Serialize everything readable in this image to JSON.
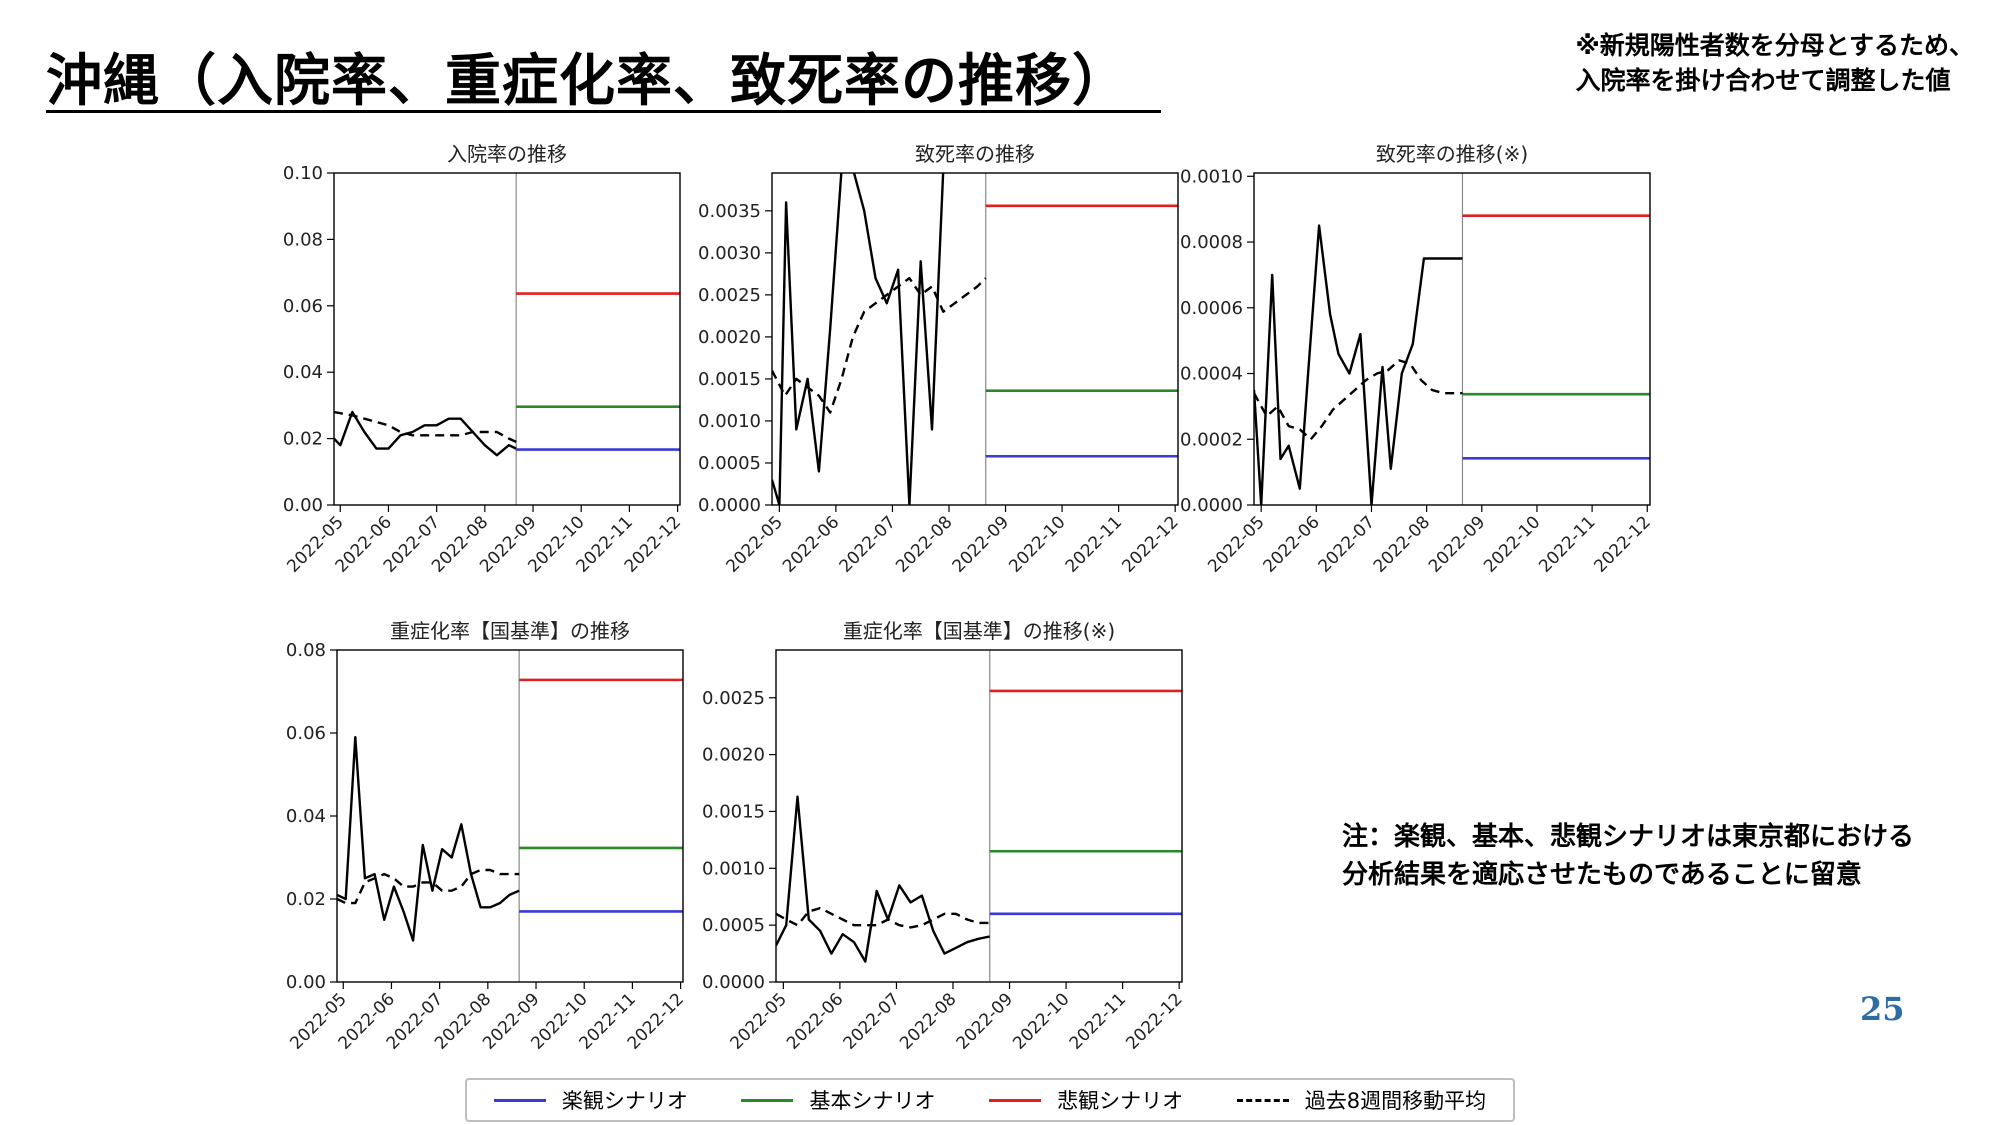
{
  "page": {
    "title": "沖縄（入院率、重症化率、致死率の推移）",
    "note_top": [
      "※新規陽性者数を分母とするため、",
      "入院率を掛け合わせて調整した値"
    ],
    "note_bottom": [
      "注：楽観、基本、悲観シナリオは東京都における",
      "分析結果を適応させたものであることに留意"
    ],
    "page_number": "25"
  },
  "colors": {
    "optimistic": "#3a3ad8",
    "base": "#2a8a2a",
    "pessimistic": "#e02020",
    "actual": "#000000"
  },
  "legend": [
    {
      "label": "楽観シナリオ",
      "style": "solid",
      "color": "#3a3ad8"
    },
    {
      "label": "基本シナリオ",
      "style": "solid",
      "color": "#2a8a2a"
    },
    {
      "label": "悲観シナリオ",
      "style": "solid",
      "color": "#e02020"
    },
    {
      "label": "過去8週間移動平均",
      "style": "dashed",
      "color": "#000000"
    }
  ],
  "chart_data": [
    {
      "type": "line",
      "title": "入院率の推移",
      "xlabel": "",
      "ylabel": "",
      "x_ticks": [
        "2022-05",
        "2022-06",
        "2022-07",
        "2022-08",
        "2022-09",
        "2022-10",
        "2022-11",
        "2022-12"
      ],
      "x_range": [
        4.87,
        12.05
      ],
      "ylim": [
        0,
        0.1
      ],
      "y_ticks": [
        0.0,
        0.02,
        0.04,
        0.06,
        0.08,
        0.1
      ],
      "y_tick_labels": [
        "0.00",
        "0.02",
        "0.04",
        "0.06",
        "0.08",
        "0.10"
      ],
      "y_axis_top_tick": true,
      "split_x": 8.65,
      "scenarios": [
        {
          "name": "楽観シナリオ",
          "value": 0.0167
        },
        {
          "name": "基本シナリオ",
          "value": 0.0296
        },
        {
          "name": "悲観シナリオ",
          "value": 0.0637
        }
      ],
      "series": [
        {
          "name": "actual",
          "style": "solid",
          "x": [
            4.87,
            5.0,
            5.25,
            5.5,
            5.75,
            6.0,
            6.25,
            6.5,
            6.75,
            7.0,
            7.25,
            7.5,
            7.75,
            8.0,
            8.25,
            8.5,
            8.65
          ],
          "y": [
            0.02,
            0.018,
            0.028,
            0.022,
            0.017,
            0.017,
            0.021,
            0.022,
            0.024,
            0.024,
            0.026,
            0.026,
            0.022,
            0.018,
            0.015,
            0.018,
            0.017
          ]
        },
        {
          "name": "過去8週間移動平均",
          "style": "dashed",
          "x": [
            4.87,
            5.25,
            5.5,
            5.75,
            6.0,
            6.25,
            6.5,
            6.75,
            7.0,
            7.25,
            7.5,
            7.75,
            8.0,
            8.25,
            8.5,
            8.65
          ],
          "y": [
            0.028,
            0.027,
            0.026,
            0.025,
            0.024,
            0.022,
            0.021,
            0.021,
            0.021,
            0.021,
            0.021,
            0.022,
            0.022,
            0.022,
            0.02,
            0.019
          ]
        }
      ]
    },
    {
      "type": "line",
      "title": "致死率の推移",
      "xlabel": "",
      "ylabel": "",
      "x_ticks": [
        "2022-05",
        "2022-06",
        "2022-07",
        "2022-08",
        "2022-09",
        "2022-10",
        "2022-11",
        "2022-12"
      ],
      "x_range": [
        4.87,
        12.05
      ],
      "ylim": [
        0,
        0.00395
      ],
      "y_ticks": [
        0.0,
        0.0005,
        0.001,
        0.0015,
        0.002,
        0.0025,
        0.003,
        0.0035
      ],
      "y_tick_labels": [
        "0.0000",
        "0.0005",
        "0.0010",
        "0.0015",
        "0.0020",
        "0.0025",
        "0.0030",
        "0.0035"
      ],
      "y_axis_top_tick": false,
      "split_x": 8.65,
      "scenarios": [
        {
          "name": "楽観シナリオ",
          "value": 0.00058
        },
        {
          "name": "基本シナリオ",
          "value": 0.00136
        },
        {
          "name": "悲観シナリオ",
          "value": 0.00356
        }
      ],
      "series": [
        {
          "name": "actual",
          "style": "solid",
          "x": [
            4.87,
            5.0,
            5.12,
            5.3,
            5.5,
            5.7,
            5.9,
            6.1,
            6.3,
            6.5,
            6.7,
            6.9,
            7.1,
            7.3,
            7.5,
            7.7,
            7.9,
            8.1,
            8.3,
            8.5,
            8.65
          ],
          "y": [
            0.0003,
            0.0,
            0.0036,
            0.0009,
            0.0015,
            0.0004,
            0.0021,
            0.004,
            0.004,
            0.0035,
            0.0027,
            0.0024,
            0.0028,
            0.0,
            0.0029,
            0.0009,
            0.004,
            0.004,
            0.004,
            0.004,
            0.004
          ]
        },
        {
          "name": "過去8週間移動平均",
          "style": "dashed",
          "x": [
            4.87,
            5.1,
            5.3,
            5.5,
            5.7,
            5.9,
            6.1,
            6.3,
            6.5,
            6.7,
            6.9,
            7.1,
            7.3,
            7.5,
            7.7,
            7.9,
            8.1,
            8.3,
            8.5,
            8.65
          ],
          "y": [
            0.0016,
            0.0013,
            0.0015,
            0.0014,
            0.0013,
            0.0011,
            0.0015,
            0.002,
            0.0023,
            0.0024,
            0.0025,
            0.0026,
            0.0027,
            0.0025,
            0.0026,
            0.0023,
            0.0024,
            0.0025,
            0.0026,
            0.0027
          ]
        }
      ]
    },
    {
      "type": "line",
      "title": "致死率の推移(※)",
      "xlabel": "",
      "ylabel": "",
      "x_ticks": [
        "2022-05",
        "2022-06",
        "2022-07",
        "2022-08",
        "2022-09",
        "2022-10",
        "2022-11",
        "2022-12"
      ],
      "x_range": [
        4.87,
        12.05
      ],
      "ylim": [
        0,
        0.00101
      ],
      "y_ticks": [
        0.0,
        0.0002,
        0.0004,
        0.0006,
        0.0008,
        0.001
      ],
      "y_tick_labels": [
        "0.0000",
        "0.0002",
        "0.0004",
        "0.0006",
        "0.0008",
        "0.0010"
      ],
      "y_axis_top_tick": false,
      "split_x": 8.65,
      "scenarios": [
        {
          "name": "楽観シナリオ",
          "value": 0.000142
        },
        {
          "name": "基本シナリオ",
          "value": 0.000337
        },
        {
          "name": "悲観シナリオ",
          "value": 0.00088
        }
      ],
      "series": [
        {
          "name": "actual",
          "style": "solid",
          "x": [
            4.87,
            5.0,
            5.2,
            5.35,
            5.5,
            5.7,
            5.85,
            6.05,
            6.25,
            6.4,
            6.6,
            6.8,
            7.0,
            7.2,
            7.35,
            7.55,
            7.75,
            7.95,
            8.15,
            8.35,
            8.55,
            8.65
          ],
          "y": [
            0.00035,
            0.0,
            0.0007,
            0.00014,
            0.00018,
            5e-05,
            0.0004,
            0.00085,
            0.00058,
            0.00046,
            0.0004,
            0.00052,
            0.0,
            0.00042,
            0.00011,
            0.0004,
            0.00049,
            0.00075,
            0.00075,
            0.00075,
            0.00075,
            0.00075
          ]
        },
        {
          "name": "過去8週間移動平均",
          "style": "dashed",
          "x": [
            4.87,
            5.1,
            5.3,
            5.5,
            5.7,
            5.9,
            6.1,
            6.3,
            6.5,
            6.7,
            6.9,
            7.1,
            7.3,
            7.5,
            7.7,
            7.9,
            8.1,
            8.3,
            8.5,
            8.65
          ],
          "y": [
            0.00034,
            0.00027,
            0.0003,
            0.00024,
            0.00023,
            0.0002,
            0.00024,
            0.00029,
            0.00032,
            0.00035,
            0.00038,
            0.0004,
            0.00041,
            0.00044,
            0.00043,
            0.00038,
            0.00035,
            0.00034,
            0.00034,
            0.00034
          ]
        }
      ]
    },
    {
      "type": "line",
      "title": "重症化率【国基準】の推移",
      "xlabel": "",
      "ylabel": "",
      "x_ticks": [
        "2022-05",
        "2022-06",
        "2022-07",
        "2022-08",
        "2022-09",
        "2022-10",
        "2022-11",
        "2022-12"
      ],
      "x_range": [
        4.87,
        12.05
      ],
      "ylim": [
        0,
        0.08
      ],
      "y_ticks": [
        0.0,
        0.02,
        0.04,
        0.06,
        0.08
      ],
      "y_tick_labels": [
        "0.00",
        "0.02",
        "0.04",
        "0.06",
        "0.08"
      ],
      "y_axis_top_tick": true,
      "split_x": 8.65,
      "scenarios": [
        {
          "name": "楽観シナリオ",
          "value": 0.017
        },
        {
          "name": "基本シナリオ",
          "value": 0.0323
        },
        {
          "name": "悲観シナリオ",
          "value": 0.0728
        }
      ],
      "series": [
        {
          "name": "actual",
          "style": "solid",
          "x": [
            4.87,
            5.05,
            5.25,
            5.45,
            5.65,
            5.85,
            6.05,
            6.25,
            6.45,
            6.65,
            6.85,
            7.05,
            7.25,
            7.45,
            7.65,
            7.85,
            8.05,
            8.25,
            8.45,
            8.65
          ],
          "y": [
            0.021,
            0.02,
            0.059,
            0.025,
            0.026,
            0.015,
            0.023,
            0.017,
            0.01,
            0.033,
            0.022,
            0.032,
            0.03,
            0.038,
            0.026,
            0.018,
            0.018,
            0.019,
            0.021,
            0.022
          ]
        },
        {
          "name": "過去8週間移動平均",
          "style": "dashed",
          "x": [
            4.87,
            5.05,
            5.25,
            5.45,
            5.65,
            5.85,
            6.05,
            6.25,
            6.45,
            6.65,
            6.85,
            7.05,
            7.25,
            7.45,
            7.65,
            7.85,
            8.05,
            8.25,
            8.45,
            8.65
          ],
          "y": [
            0.02,
            0.019,
            0.019,
            0.024,
            0.025,
            0.026,
            0.025,
            0.023,
            0.023,
            0.024,
            0.024,
            0.022,
            0.022,
            0.023,
            0.026,
            0.027,
            0.027,
            0.026,
            0.026,
            0.026
          ]
        }
      ]
    },
    {
      "type": "line",
      "title": "重症化率【国基準】の推移(※)",
      "xlabel": "",
      "ylabel": "",
      "x_ticks": [
        "2022-05",
        "2022-06",
        "2022-07",
        "2022-08",
        "2022-09",
        "2022-10",
        "2022-11",
        "2022-12"
      ],
      "x_range": [
        4.87,
        12.05
      ],
      "ylim": [
        0,
        0.00292
      ],
      "y_ticks": [
        0.0,
        0.0005,
        0.001,
        0.0015,
        0.002,
        0.0025
      ],
      "y_tick_labels": [
        "0.0000",
        "0.0005",
        "0.0010",
        "0.0015",
        "0.0020",
        "0.0025"
      ],
      "y_axis_top_tick": false,
      "split_x": 8.65,
      "scenarios": [
        {
          "name": "楽観シナリオ",
          "value": 0.0006
        },
        {
          "name": "基本シナリオ",
          "value": 0.00115
        },
        {
          "name": "悲観シナリオ",
          "value": 0.00256
        }
      ],
      "series": [
        {
          "name": "actual",
          "style": "solid",
          "x": [
            4.87,
            5.05,
            5.25,
            5.45,
            5.65,
            5.85,
            6.05,
            6.25,
            6.45,
            6.65,
            6.85,
            7.05,
            7.25,
            7.45,
            7.65,
            7.85,
            8.05,
            8.25,
            8.45,
            8.65
          ],
          "y": [
            0.00032,
            0.0005,
            0.00163,
            0.00055,
            0.00045,
            0.00025,
            0.00042,
            0.00035,
            0.00018,
            0.0008,
            0.00055,
            0.00085,
            0.0007,
            0.00076,
            0.00045,
            0.00025,
            0.0003,
            0.00035,
            0.00038,
            0.0004
          ]
        },
        {
          "name": "過去8週間移動平均",
          "style": "dashed",
          "x": [
            4.87,
            5.05,
            5.25,
            5.45,
            5.65,
            5.85,
            6.05,
            6.25,
            6.45,
            6.65,
            6.85,
            7.05,
            7.25,
            7.45,
            7.65,
            7.85,
            8.05,
            8.25,
            8.45,
            8.65
          ],
          "y": [
            0.0006,
            0.00055,
            0.0005,
            0.00062,
            0.00065,
            0.0006,
            0.00055,
            0.0005,
            0.0005,
            0.0005,
            0.00055,
            0.0005,
            0.00048,
            0.0005,
            0.00055,
            0.0006,
            0.0006,
            0.00055,
            0.00052,
            0.00052
          ]
        }
      ]
    }
  ]
}
